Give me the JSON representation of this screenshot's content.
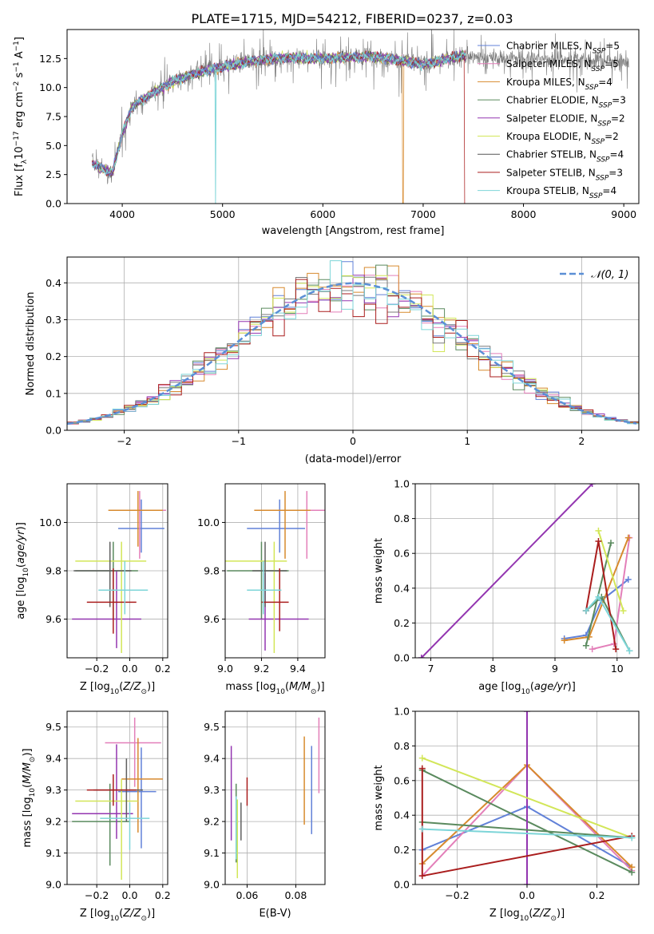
{
  "title": "PLATE=1715, MJD=54212, FIBERID=0237, z=0.03",
  "colors": {
    "blue": "#6181d8",
    "pink": "#e37fb9",
    "orange": "#e8752a",
    "green": "#5a8a5e",
    "purple": "#9335b0",
    "yellow": "#d2e658",
    "gray": "#7a7a7a",
    "red": "#aa1d1d",
    "cyan": "#7dd5d8",
    "dashed": "#5b8fd6"
  },
  "models": [
    {
      "label": "Chabrier MILES, N$_{SSP}$=5",
      "name": "Chabrier MILES, N",
      "sub": "SSP",
      "n": "=5",
      "color": "#6181d8"
    },
    {
      "label": "Salpeter MILES",
      "name": "Salpeter MILES, N",
      "sub": "SSP",
      "n": "=5",
      "color": "#e37fb9"
    },
    {
      "label": "Kroupa MILES",
      "name": "Kroupa MILES, N",
      "sub": "SSP",
      "n": "=4",
      "color": "#d78a2e"
    },
    {
      "label": "Chabrier ELODIE",
      "name": "Chabrier ELODIE, N",
      "sub": "SSP",
      "n": "=3",
      "color": "#5a8a5e"
    },
    {
      "label": "Salpeter ELODIE",
      "name": "Salpeter ELODIE, N",
      "sub": "SSP",
      "n": "=2",
      "color": "#9335b0"
    },
    {
      "label": "Kroupa ELODIE",
      "name": "Kroupa ELODIE, N",
      "sub": "SSP",
      "n": "=2",
      "color": "#d2e658"
    },
    {
      "label": "Chabrier STELIB",
      "name": "Chabrier STELIB, N",
      "sub": "SSP",
      "n": "=4",
      "color": "#555555"
    },
    {
      "label": "Salpeter STELIB",
      "name": "Salpeter STELIB, N",
      "sub": "SSP",
      "n": "=3",
      "color": "#aa1d1d"
    },
    {
      "label": "Kroupa STELIB",
      "name": "Kroupa STELIB, N",
      "sub": "SSP",
      "n": "=4",
      "color": "#7dd5d8"
    }
  ],
  "chart_data": [
    {
      "id": "spectrum",
      "type": "line",
      "xlabel": "wavelength [Angstrom, rest frame]",
      "ylabel": "Flux [f_λ 10^-17 erg cm^-2 s^-1 A^-1]",
      "xlim": [
        3450,
        9150
      ],
      "ylim": [
        0,
        15
      ],
      "xticks": [
        4000,
        5000,
        6000,
        7000,
        8000,
        9000
      ],
      "yticks": [
        0.0,
        2.5,
        5.0,
        7.5,
        10.0,
        12.5
      ],
      "ytick_labels": [
        "0.0",
        "2.5",
        "5.0",
        "7.5",
        "10.0",
        "12.5"
      ],
      "continuum": {
        "x": [
          3700,
          3900,
          4000,
          4100,
          4300,
          4500,
          4800,
          5000,
          5300,
          5600,
          6000,
          6500,
          7000,
          7400
        ],
        "y": [
          3.5,
          2.6,
          6.0,
          8.4,
          9.5,
          10.5,
          11.4,
          11.8,
          12.3,
          12.6,
          12.5,
          12.7,
          12.0,
          12.8
        ]
      },
      "data_range": [
        3700,
        9050
      ],
      "model_range": [
        3700,
        7430
      ],
      "dips": [
        {
          "x": 4930,
          "y": 0
        },
        {
          "x": 6800,
          "y": 0
        },
        {
          "x": 7420,
          "y": 0
        }
      ],
      "grid": false,
      "legend": "top-right"
    },
    {
      "id": "residuals",
      "type": "histogram",
      "xlabel": "(data-model)/error",
      "ylabel": "Normed distribution",
      "xlim": [
        -2.5,
        2.5
      ],
      "ylim": [
        0,
        0.47
      ],
      "xticks": [
        -2,
        -1,
        0,
        1,
        2
      ],
      "xtick_labels": [
        "−2",
        "−1",
        "0",
        "1",
        "2"
      ],
      "yticks": [
        0.0,
        0.1,
        0.2,
        0.3,
        0.4
      ],
      "ytick_labels": [
        "0.0",
        "0.1",
        "0.2",
        "0.3",
        "0.4"
      ],
      "bin_width": 0.1,
      "reference": {
        "name": "𝒩(0, 1)",
        "mean": 0,
        "sigma": 1
      },
      "grid": true,
      "legend": "top-right"
    },
    {
      "id": "age-vs-Z",
      "type": "errorbar",
      "xlabel": "Z [log10(Z/Z⊙)]",
      "ylabel": "age [log10(age/yr)]",
      "xlim": [
        -0.38,
        0.23
      ],
      "ylim": [
        9.44,
        10.16
      ],
      "xticks": [
        -0.2,
        0.0,
        0.2
      ],
      "xtick_labels": [
        "−0.2",
        "0.0",
        "0.2"
      ],
      "yticks": [
        9.6,
        9.8,
        10.0
      ],
      "ytick_labels": [
        "9.6",
        "9.8",
        "10.0"
      ],
      "points": [
        {
          "model": 0,
          "x": 0.07,
          "xerr": [
            0.14,
            0.14
          ],
          "y": 9.975,
          "yerr": [
            0.1,
            0.12
          ]
        },
        {
          "model": 1,
          "x": 0.06,
          "xerr": [
            0.18,
            0.16
          ],
          "y": 10.05,
          "yerr": [
            0.2,
            0.08
          ]
        },
        {
          "model": 2,
          "x": 0.05,
          "xerr": [
            0.18,
            0.15
          ],
          "y": 10.05,
          "yerr": [
            0.15,
            0.08
          ]
        },
        {
          "model": 3,
          "x": -0.1,
          "xerr": [
            0.23,
            0.15
          ],
          "y": 9.8,
          "yerr": [
            0.2,
            0.12
          ]
        },
        {
          "model": 4,
          "x": -0.08,
          "xerr": [
            0.27,
            0.15
          ],
          "y": 9.6,
          "yerr": [
            0.12,
            0.2
          ]
        },
        {
          "model": 5,
          "x": -0.05,
          "xerr": [
            0.28,
            0.15
          ],
          "y": 9.84,
          "yerr": [
            0.38,
            0.08
          ]
        },
        {
          "model": 6,
          "x": -0.12,
          "xerr": [
            0.22,
            0.13
          ],
          "y": 9.8,
          "yerr": [
            0.15,
            0.12
          ]
        },
        {
          "model": 7,
          "x": -0.1,
          "xerr": [
            0.16,
            0.14
          ],
          "y": 9.67,
          "yerr": [
            0.13,
            0.14
          ]
        },
        {
          "model": 8,
          "x": -0.03,
          "xerr": [
            0.16,
            0.14
          ],
          "y": 9.72,
          "yerr": [
            0.1,
            0.12
          ]
        }
      ]
    },
    {
      "id": "age-vs-mass",
      "type": "errorbar",
      "xlabel": "mass [log10(M/M⊙)]",
      "ylabel": "",
      "xlim": [
        9.0,
        9.55
      ],
      "ylim": [
        9.44,
        10.16
      ],
      "xticks": [
        9.0,
        9.2,
        9.4
      ],
      "xtick_labels": [
        "9.0",
        "9.2",
        "9.4"
      ],
      "yticks": [
        9.6,
        9.8,
        10.0
      ],
      "ytick_labels": [
        "9.6",
        "9.8",
        "10.0"
      ],
      "points": [
        {
          "model": 0,
          "x": 9.3,
          "xerr": [
            0.18,
            0.14
          ],
          "y": 9.975,
          "yerr": [
            0.1,
            0.12
          ]
        },
        {
          "model": 1,
          "x": 9.45,
          "xerr": [
            0.14,
            0.12
          ],
          "y": 10.05,
          "yerr": [
            0.2,
            0.08
          ]
        },
        {
          "model": 2,
          "x": 9.33,
          "xerr": [
            0.17,
            0.14
          ],
          "y": 10.05,
          "yerr": [
            0.2,
            0.08
          ]
        },
        {
          "model": 3,
          "x": 9.2,
          "xerr": [
            0.19,
            0.15
          ],
          "y": 9.8,
          "yerr": [
            0.2,
            0.12
          ]
        },
        {
          "model": 4,
          "x": 9.22,
          "xerr": [
            0.09,
            0.24
          ],
          "y": 9.6,
          "yerr": [
            0.13,
            0.19
          ]
        },
        {
          "model": 5,
          "x": 9.27,
          "xerr": [
            0.28,
            0.07
          ],
          "y": 9.84,
          "yerr": [
            0.38,
            0.08
          ]
        },
        {
          "model": 6,
          "x": 9.22,
          "xerr": [
            0.07,
            0.12
          ],
          "y": 9.8,
          "yerr": [
            0.15,
            0.12
          ]
        },
        {
          "model": 7,
          "x": 9.3,
          "xerr": [
            0.1,
            0.05
          ],
          "y": 9.67,
          "yerr": [
            0.12,
            0.14
          ]
        },
        {
          "model": 8,
          "x": 9.21,
          "xerr": [
            0.09,
            0.1
          ],
          "y": 9.72,
          "yerr": [
            0.1,
            0.12
          ]
        }
      ]
    },
    {
      "id": "weight-vs-age",
      "type": "line",
      "xlabel": "age [log10(age/yr)]",
      "ylabel": "mass weight",
      "xlim": [
        6.75,
        10.35
      ],
      "ylim": [
        0,
        1
      ],
      "xticks": [
        7,
        8,
        9,
        10
      ],
      "xtick_labels": [
        "7",
        "8",
        "9",
        "10"
      ],
      "yticks": [
        0.0,
        0.2,
        0.4,
        0.6,
        0.8,
        1.0
      ],
      "ytick_labels": [
        "0.0",
        "0.2",
        "0.4",
        "0.6",
        "0.8",
        "1.0"
      ],
      "series": [
        {
          "model": 0,
          "x": [
            9.15,
            9.5,
            9.75,
            10.18
          ],
          "y": [
            0.11,
            0.13,
            0.33,
            0.45
          ]
        },
        {
          "model": 1,
          "x": [
            9.6,
            9.95,
            10.2
          ],
          "y": [
            0.05,
            0.08,
            0.69
          ]
        },
        {
          "model": 2,
          "x": [
            9.15,
            9.55,
            10.18
          ],
          "y": [
            0.1,
            0.12,
            0.69
          ]
        },
        {
          "model": 3,
          "x": [
            9.5,
            9.9
          ],
          "y": [
            0.07,
            0.66
          ]
        },
        {
          "model": 4,
          "x": [
            6.85,
            9.6
          ],
          "y": [
            0.0,
            1.0
          ]
        },
        {
          "model": 5,
          "x": [
            9.7,
            10.1
          ],
          "y": [
            0.73,
            0.27
          ]
        },
        {
          "model": 6,
          "x": [
            9.5,
            9.75,
            10.2
          ],
          "y": [
            0.27,
            0.35,
            0.04
          ]
        },
        {
          "model": 7,
          "x": [
            9.5,
            9.7,
            9.98
          ],
          "y": [
            0.27,
            0.67,
            0.05
          ]
        },
        {
          "model": 8,
          "x": [
            9.5,
            9.7,
            10.2
          ],
          "y": [
            0.27,
            0.35,
            0.04
          ]
        }
      ]
    },
    {
      "id": "mass-vs-Z",
      "type": "errorbar",
      "xlabel": "Z [log10(Z/Z⊙)]",
      "ylabel": "mass [log10(M/M⊙)]",
      "xlim": [
        -0.38,
        0.23
      ],
      "ylim": [
        9.0,
        9.55
      ],
      "xticks": [
        -0.2,
        0.0,
        0.2
      ],
      "xtick_labels": [
        "−0.2",
        "0.0",
        "0.2"
      ],
      "yticks": [
        9.0,
        9.1,
        9.2,
        9.3,
        9.4,
        9.5
      ],
      "ytick_labels": [
        "9.0",
        "9.1",
        "9.2",
        "9.3",
        "9.4",
        "9.5"
      ],
      "points": [
        {
          "model": 0,
          "x": 0.07,
          "xerr": [
            0.14,
            0.09
          ],
          "y": 9.295,
          "yerr": [
            0.18,
            0.14
          ]
        },
        {
          "model": 1,
          "x": 0.03,
          "xerr": [
            0.18,
            0.16
          ],
          "y": 9.45,
          "yerr": [
            0.14,
            0.08
          ]
        },
        {
          "model": 2,
          "x": 0.05,
          "xerr": [
            0.1,
            0.15
          ],
          "y": 9.335,
          "yerr": [
            0.17,
            0.13
          ]
        },
        {
          "model": 3,
          "x": -0.12,
          "xerr": [
            0.23,
            0.12
          ],
          "y": 9.2,
          "yerr": [
            0.14,
            0.12
          ]
        },
        {
          "model": 4,
          "x": -0.08,
          "xerr": [
            0.27,
            0.1
          ],
          "y": 9.225,
          "yerr": [
            0.08,
            0.22
          ]
        },
        {
          "model": 5,
          "x": -0.05,
          "xerr": [
            0.28,
            0.1
          ],
          "y": 9.265,
          "yerr": [
            0.25,
            0.07
          ]
        },
        {
          "model": 6,
          "x": -0.02,
          "xerr": [
            0.2,
            0.1
          ],
          "y": 9.3,
          "yerr": [
            0.1,
            0.1
          ]
        },
        {
          "model": 7,
          "x": -0.1,
          "xerr": [
            0.16,
            0.14
          ],
          "y": 9.3,
          "yerr": [
            0.05,
            0.05
          ]
        },
        {
          "model": 8,
          "x": 0.0,
          "xerr": [
            0.18,
            0.12
          ],
          "y": 9.21,
          "yerr": [
            0.1,
            0.05
          ]
        }
      ]
    },
    {
      "id": "mass-vs-ebv",
      "type": "errorbar",
      "xlabel": "E(B-V)",
      "ylabel": "",
      "xlim": [
        0.051,
        0.092
      ],
      "ylim": [
        9.0,
        9.55
      ],
      "xticks": [
        0.06,
        0.08
      ],
      "xtick_labels": [
        "0.06",
        "0.08"
      ],
      "yticks": [
        9.0,
        9.1,
        9.2,
        9.3,
        9.4,
        9.5
      ],
      "ytick_labels": [
        "9.0",
        "9.1",
        "9.2",
        "9.3",
        "9.4",
        "9.5"
      ],
      "points": [
        {
          "model": 0,
          "x": 0.0865,
          "xerr": [
            0,
            0
          ],
          "y": 9.3,
          "yerr": [
            0.14,
            0.14
          ]
        },
        {
          "model": 1,
          "x": 0.0895,
          "xerr": [
            0,
            0
          ],
          "y": 9.4,
          "yerr": [
            0.11,
            0.13
          ]
        },
        {
          "model": 2,
          "x": 0.0835,
          "xerr": [
            0,
            0
          ],
          "y": 9.33,
          "yerr": [
            0.14,
            0.14
          ]
        },
        {
          "model": 3,
          "x": 0.0555,
          "xerr": [
            0,
            0
          ],
          "y": 9.2,
          "yerr": [
            0.13,
            0.12
          ]
        },
        {
          "model": 4,
          "x": 0.0535,
          "xerr": [
            0,
            0
          ],
          "y": 9.29,
          "yerr": [
            0.15,
            0.15
          ]
        },
        {
          "model": 5,
          "x": 0.056,
          "xerr": [
            0,
            0
          ],
          "y": 9.15,
          "yerr": [
            0.13,
            0.12
          ]
        },
        {
          "model": 6,
          "x": 0.0575,
          "xerr": [
            0,
            0
          ],
          "y": 9.2,
          "yerr": [
            0.06,
            0.06
          ]
        },
        {
          "model": 7,
          "x": 0.06,
          "xerr": [
            0,
            0
          ],
          "y": 9.3,
          "yerr": [
            0.05,
            0.04
          ]
        },
        {
          "model": 8,
          "x": 0.0555,
          "xerr": [
            0,
            0
          ],
          "y": 9.2,
          "yerr": [
            0.12,
            0.08
          ]
        }
      ]
    },
    {
      "id": "weight-vs-Z",
      "type": "line",
      "xlabel": "Z [log10(Z/Z⊙)]",
      "ylabel": "mass weight",
      "xlim": [
        -0.32,
        0.32
      ],
      "ylim": [
        0,
        1
      ],
      "xticks": [
        -0.2,
        0.0,
        0.2
      ],
      "xtick_labels": [
        "−0.2",
        "0.0",
        "0.2"
      ],
      "yticks": [
        0.0,
        0.2,
        0.4,
        0.6,
        0.8,
        1.0
      ],
      "ytick_labels": [
        "0.0",
        "0.2",
        "0.4",
        "0.6",
        "0.8",
        "1.0"
      ],
      "series": [
        {
          "model": 0,
          "x": [
            -0.3,
            0.0,
            0.3
          ],
          "y": [
            0.2,
            0.45,
            0.1
          ]
        },
        {
          "model": 1,
          "x": [
            -0.3,
            0.0,
            0.3
          ],
          "y": [
            0.05,
            0.69,
            0.08
          ]
        },
        {
          "model": 2,
          "x": [
            -0.3,
            0.0,
            0.3
          ],
          "y": [
            0.12,
            0.69,
            0.1
          ]
        },
        {
          "model": 3,
          "x": [
            -0.3,
            0.3
          ],
          "y": [
            0.66,
            0.07
          ]
        },
        {
          "model": 4,
          "x": [
            0.0,
            0.0
          ],
          "y": [
            0.0,
            1.0
          ]
        },
        {
          "model": 5,
          "x": [
            -0.3,
            0.3
          ],
          "y": [
            0.73,
            0.27
          ]
        },
        {
          "model": 6,
          "x": [
            -0.3,
            0.3
          ],
          "y": [
            0.36,
            0.27
          ]
        },
        {
          "model": 7,
          "x": [
            -0.3,
            -0.3,
            0.3
          ],
          "y": [
            0.67,
            0.05,
            0.28
          ]
        },
        {
          "model": 8,
          "x": [
            -0.3,
            0.3
          ],
          "y": [
            0.32,
            0.27
          ]
        }
      ]
    }
  ]
}
